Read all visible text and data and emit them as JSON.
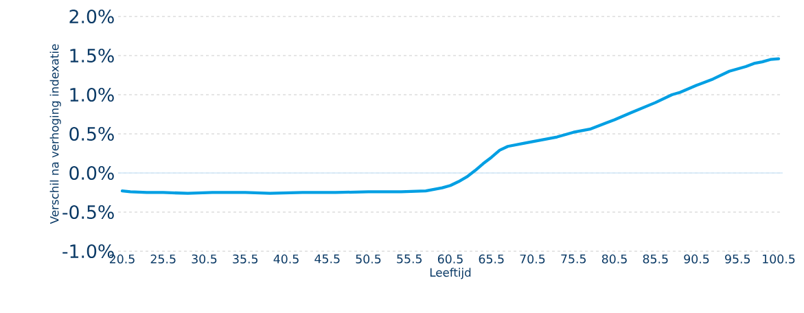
{
  "chart_data": {
    "type": "line",
    "xlabel": "Leeftijd",
    "ylabel": "Verschil na verhoging indexatie",
    "xlim": [
      20,
      101
    ],
    "xticks": [
      20.5,
      25.5,
      30.5,
      35.5,
      40.5,
      45.5,
      50.5,
      55.5,
      60.5,
      65.5,
      70.5,
      75.5,
      80.5,
      85.5,
      90.5,
      95.5,
      100.5
    ],
    "ylim": [
      -1.0,
      2.0
    ],
    "yticks": [
      {
        "value": -1.0,
        "label": "-1.0%"
      },
      {
        "value": -0.5,
        "label": "-0.5%"
      },
      {
        "value": 0,
        "label": "0.0%"
      },
      {
        "value": 0.5,
        "label": "0.5%"
      },
      {
        "value": 1.0,
        "label": "1.0%"
      },
      {
        "value": 1.5,
        "label": "1.5%"
      },
      {
        "value": 2.0,
        "label": "2.0%"
      }
    ],
    "grid": "y",
    "line_style": "solid",
    "marker": "none",
    "ref_lines": [
      {
        "axis": "y",
        "value": 0,
        "color": "#cfe7f8",
        "line_style": "solid"
      }
    ],
    "x": [
      20.5,
      21.5,
      23.5,
      25.5,
      28.5,
      31.5,
      35.5,
      38.5,
      42.5,
      46.5,
      50.5,
      54.5,
      57.5,
      58.5,
      59.5,
      60.5,
      61.5,
      62.5,
      63.5,
      64.5,
      65.5,
      66.5,
      67.5,
      69.5,
      71.5,
      73.5,
      75.5,
      77.5,
      79.5,
      80.5,
      82.5,
      85.5,
      87.5,
      88.5,
      90.5,
      92.5,
      94.5,
      96.5,
      97.5,
      98.5,
      99.5,
      100.5
    ],
    "series": [
      {
        "color": "#009fe3",
        "values": [
          -0.23,
          -0.24,
          -0.25,
          -0.25,
          -0.26,
          -0.25,
          -0.25,
          -0.26,
          -0.25,
          -0.25,
          -0.24,
          -0.24,
          -0.23,
          -0.21,
          -0.19,
          -0.16,
          -0.11,
          -0.05,
          0.03,
          0.12,
          0.2,
          0.29,
          0.34,
          0.38,
          0.42,
          0.46,
          0.52,
          0.56,
          0.64,
          0.68,
          0.77,
          0.9,
          1.0,
          1.03,
          1.12,
          1.2,
          1.3,
          1.36,
          1.4,
          1.42,
          1.45,
          1.46
        ]
      }
    ]
  }
}
